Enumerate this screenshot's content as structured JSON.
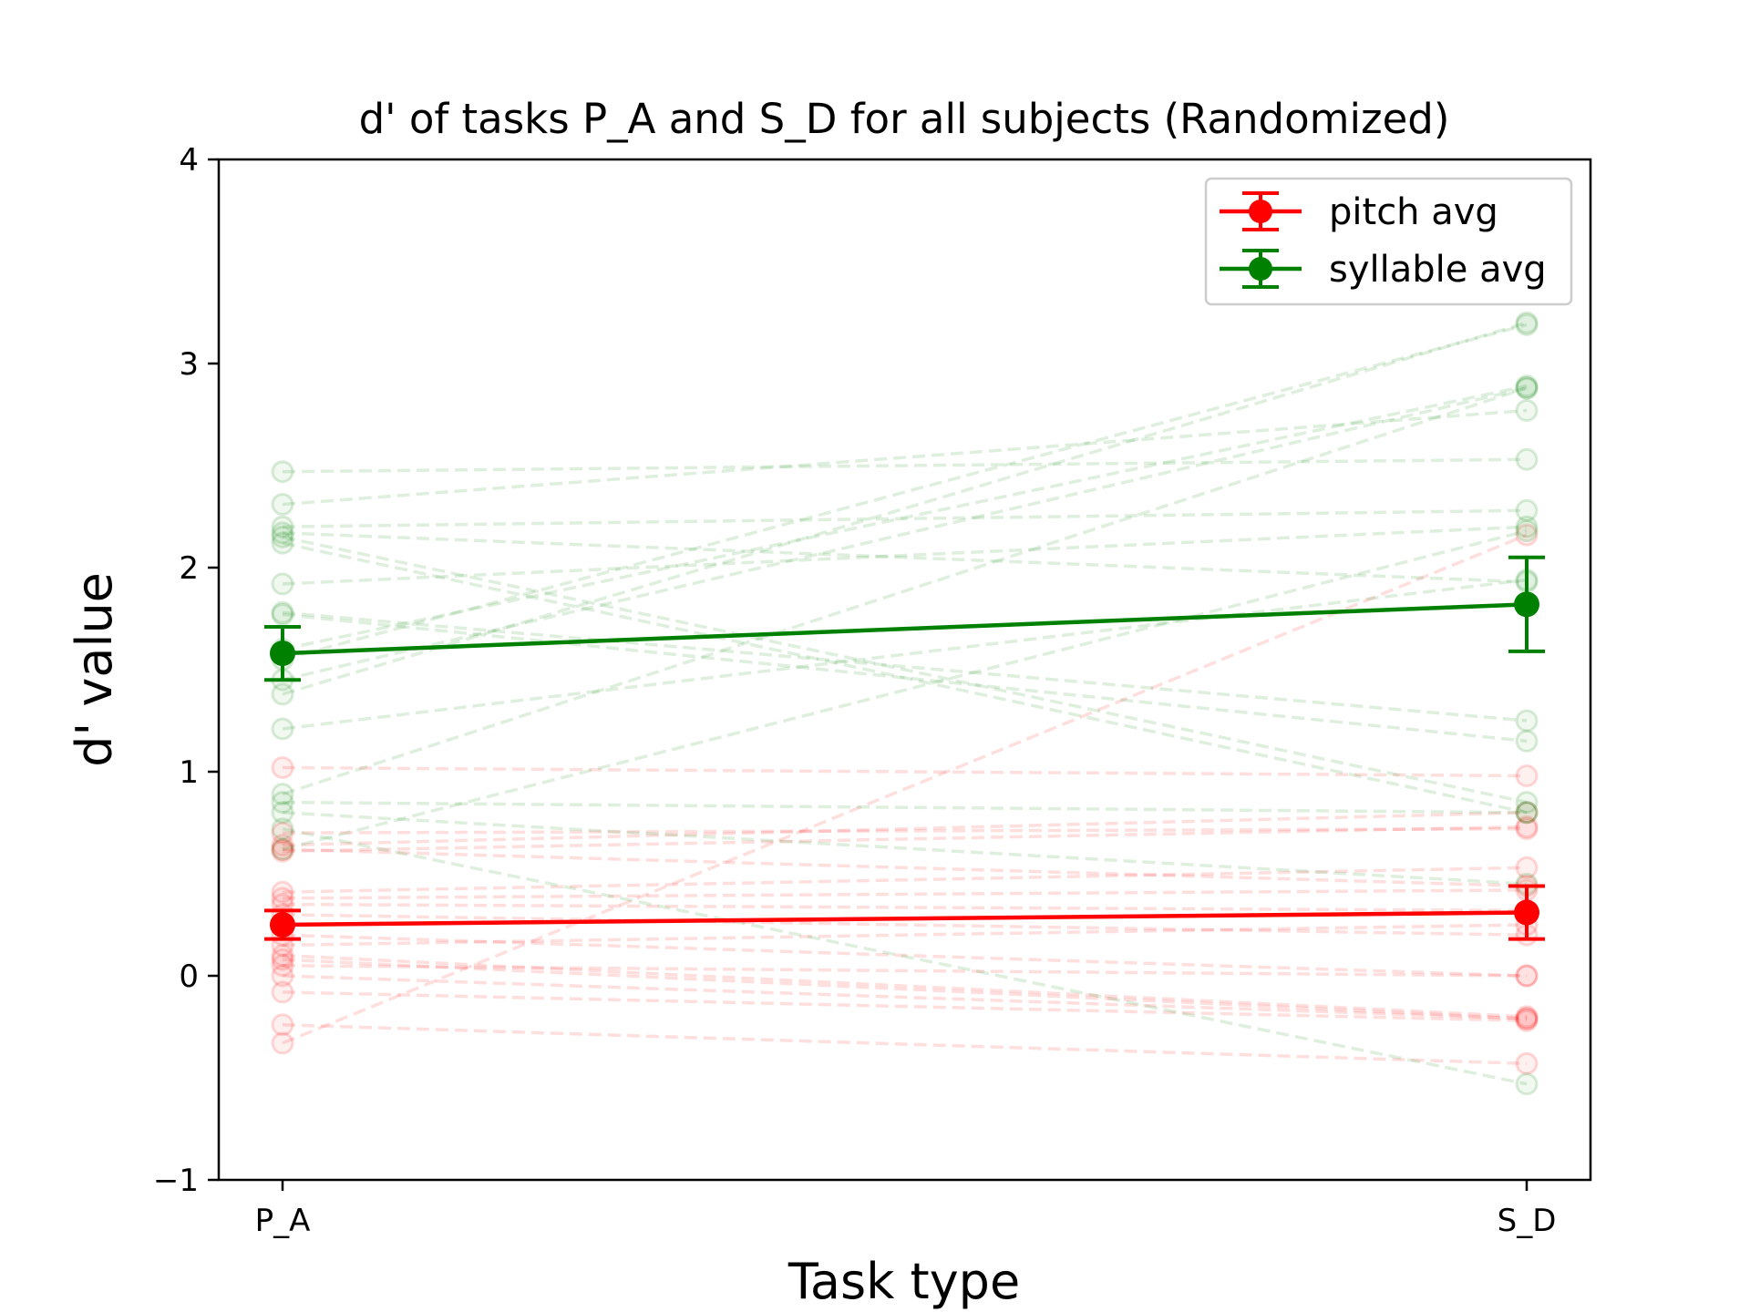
{
  "chart_data": {
    "type": "line",
    "title": "d' of tasks P_A and S_D for all subjects (Randomized)",
    "xlabel": "Task type",
    "ylabel": "d' value",
    "categories": [
      "P_A",
      "S_D"
    ],
    "ylim": [
      -1,
      4
    ],
    "yticks": [
      -1,
      0,
      1,
      2,
      3,
      4
    ],
    "ytick_labels": [
      "−1",
      "0",
      "1",
      "2",
      "3",
      "4"
    ],
    "grid": false,
    "legend": {
      "position": "top-right",
      "entries": [
        {
          "label": "pitch avg",
          "color": "#ff0000"
        },
        {
          "label": "syllable avg",
          "color": "#008000"
        }
      ]
    },
    "series": [
      {
        "name": "pitch avg",
        "color": "#ff0000",
        "values": [
          0.25,
          0.31
        ],
        "errors": [
          0.07,
          0.13
        ]
      },
      {
        "name": "syllable avg",
        "color": "#008000",
        "values": [
          1.58,
          1.82
        ],
        "errors": [
          0.13,
          0.23
        ]
      }
    ],
    "subjects": {
      "pitch": {
        "color": "#ff0000",
        "pairs": [
          [
            1.02,
            0.98
          ],
          [
            0.64,
            0.8
          ],
          [
            0.61,
            0.73
          ],
          [
            0.41,
            0.53
          ],
          [
            0.38,
            0.42
          ],
          [
            0.3,
            0.2
          ],
          [
            0.2,
            0.0
          ],
          [
            0.1,
            -0.2
          ],
          [
            0.08,
            -0.21
          ],
          [
            0.0,
            -0.21
          ],
          [
            -0.08,
            -0.22
          ],
          [
            -0.24,
            -0.43
          ],
          [
            -0.33,
            2.16
          ],
          [
            0.62,
            0.44
          ],
          [
            0.35,
            0.32
          ],
          [
            0.15,
            0.25
          ],
          [
            0.05,
            0.0
          ],
          [
            0.7,
            0.72
          ]
        ]
      },
      "syllable": {
        "color": "#008000",
        "pairs": [
          [
            2.47,
            2.53
          ],
          [
            2.31,
            2.77
          ],
          [
            2.2,
            2.28
          ],
          [
            2.17,
            1.93
          ],
          [
            2.15,
            0.85
          ],
          [
            2.12,
            0.8
          ],
          [
            1.92,
            2.2
          ],
          [
            1.78,
            1.25
          ],
          [
            1.77,
            1.15
          ],
          [
            1.55,
            3.19
          ],
          [
            1.45,
            2.88
          ],
          [
            1.38,
            3.2
          ],
          [
            1.21,
            1.94
          ],
          [
            0.89,
            2.88
          ],
          [
            0.85,
            0.8
          ],
          [
            0.8,
            0.45
          ],
          [
            0.72,
            -0.53
          ],
          [
            0.62,
            2.18
          ],
          [
            1.6,
            2.89
          ]
        ]
      }
    }
  }
}
